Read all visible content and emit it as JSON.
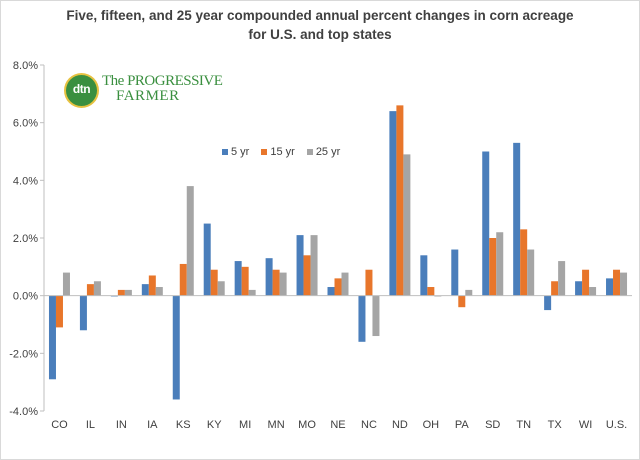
{
  "chart_data": {
    "type": "bar",
    "title_lines": [
      "Five,  fifteen, and 25 year compounded annual percent changes in corn acreage",
      "for U.S. and top states"
    ],
    "categories": [
      "CO",
      "IL",
      "IN",
      "IA",
      "KS",
      "KY",
      "MI",
      "MN",
      "MO",
      "NE",
      "NC",
      "ND",
      "OH",
      "PA",
      "SD",
      "TN",
      "TX",
      "WI",
      "U.S."
    ],
    "series": [
      {
        "name": "5 yr",
        "color": "#4a7ebb",
        "values": [
          -2.9,
          -1.2,
          0.0,
          0.4,
          -3.6,
          2.5,
          1.2,
          1.3,
          2.1,
          0.3,
          -1.6,
          6.4,
          1.4,
          1.6,
          5.0,
          5.3,
          -0.5,
          0.5,
          0.6
        ]
      },
      {
        "name": "15 yr",
        "color": "#e8762b",
        "values": [
          -1.1,
          0.4,
          0.2,
          0.7,
          1.1,
          0.9,
          1.0,
          0.9,
          1.4,
          0.6,
          0.9,
          6.6,
          0.3,
          -0.4,
          2.0,
          2.3,
          0.5,
          0.9,
          0.9
        ]
      },
      {
        "name": "25 yr",
        "color": "#a5a5a5",
        "values": [
          0.8,
          0.5,
          0.2,
          0.3,
          3.8,
          0.5,
          0.2,
          0.8,
          2.1,
          0.8,
          -1.4,
          4.9,
          0.0,
          0.2,
          2.2,
          1.6,
          1.2,
          0.3,
          0.8
        ]
      }
    ],
    "ylim": [
      -4.0,
      8.0
    ],
    "ytick_step": 2.0,
    "yticks": [
      "-4.0%",
      "-2.0%",
      "0.0%",
      "2.0%",
      "4.0%",
      "6.0%",
      "8.0%"
    ],
    "grid": false,
    "legend_position": "top-center"
  },
  "logo": {
    "mark": "dtn",
    "brand_line1": "The PROGRESSIVE",
    "brand_line2": "FARMER"
  }
}
